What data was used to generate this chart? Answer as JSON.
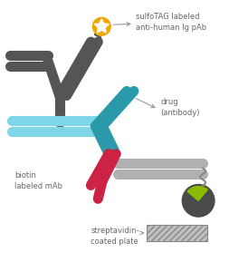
{
  "bg_color": "#ffffff",
  "dark_gray": "#555555",
  "mid_gray": "#888888",
  "light_gray": "#b0b0b0",
  "teal_dark": "#2a9aaa",
  "teal_light": "#7fd6e8",
  "red": "#cc2244",
  "gold": "#f0a800",
  "green": "#88bb00",
  "arrow_color": "#999999",
  "text_color": "#666666",
  "labels": {
    "sulfoTAG": "sulfoTAG labeled\nanti-human Ig pAb",
    "drug": "drug\n(antibody)",
    "biotin": "biotin\nlabeled mAb",
    "streptavidin": "streptavidin-\ncoated plate"
  }
}
